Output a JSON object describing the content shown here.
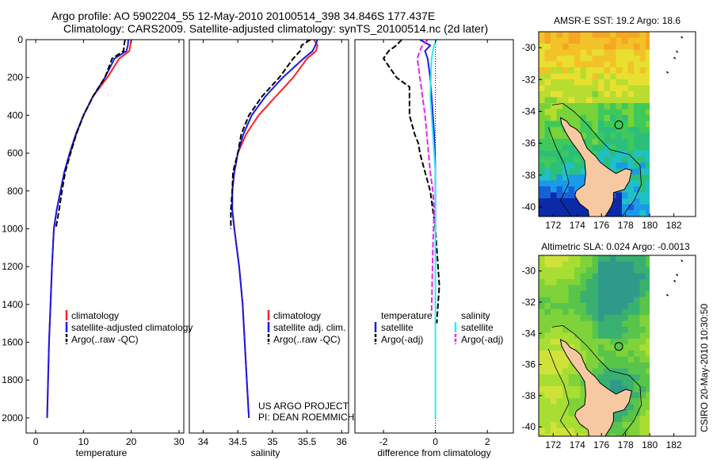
{
  "title_line1": "Argo profile: AO 5902204_55 12-May-2010 20100514_398 34.846S 177.437E",
  "title_line2": "Climatology: CARS2009. Satellite-adjusted climatology: synTS_20100514.nc (2d later)",
  "credit_line1": "US ARGO PROJECT",
  "credit_line2": "PI: DEAN ROEMMICH",
  "side_stamp": "CSIRO 20-May-2010 10:30:50",
  "colors": {
    "red": "#ff2020",
    "blue": "#1a1ae6",
    "black": "#000000",
    "cyan": "#33e6ff",
    "magenta": "#f020f0"
  },
  "chart_data": [
    {
      "type": "line",
      "xlabel": "temperature",
      "ylabel": "",
      "xlim": [
        -2,
        31
      ],
      "ylim": [
        2080,
        0
      ],
      "xticks": [
        "0",
        "10",
        "20",
        "30"
      ],
      "yticks": [
        "0",
        "200",
        "400",
        "600",
        "800",
        "1000",
        "1200",
        "1400",
        "1600",
        "1800",
        "2000"
      ],
      "legend": [
        "climatology",
        "satellite-adjusted climatology",
        "Argo(..raw -QC)"
      ],
      "series": [
        {
          "name": "climatology",
          "style": "red-solid",
          "x": [
            20,
            19.8,
            19.6,
            17.5,
            15,
            12,
            10,
            8.5,
            7.2,
            6,
            5.2,
            4.4,
            3.8,
            3.4,
            3.1,
            2.8,
            2.6,
            2.4
          ],
          "y": [
            0,
            30,
            60,
            100,
            200,
            300,
            400,
            500,
            600,
            700,
            800,
            900,
            1000,
            1200,
            1400,
            1600,
            1800,
            2000
          ]
        },
        {
          "name": "satellite-adjusted climatology",
          "style": "blue-solid",
          "x": [
            19.4,
            19.3,
            19,
            16.5,
            14.5,
            12,
            10,
            8.4,
            7.1,
            6,
            5.2,
            4.4,
            3.8,
            3.4,
            3.1,
            2.8,
            2.6,
            2.4
          ],
          "y": [
            0,
            30,
            60,
            100,
            200,
            300,
            400,
            500,
            600,
            700,
            800,
            900,
            1000,
            1200,
            1400,
            1600,
            1800,
            2000
          ]
        },
        {
          "name": "Argo(..raw -QC)",
          "style": "black-dash",
          "x": [
            18.7,
            18.5,
            18.4,
            16,
            14.5,
            12,
            10,
            8.5,
            7.3,
            6.2,
            5.5,
            4.9,
            4.2
          ],
          "y": [
            0,
            30,
            60,
            100,
            200,
            300,
            400,
            500,
            600,
            700,
            800,
            900,
            1000
          ]
        }
      ]
    },
    {
      "type": "line",
      "xlabel": "salinity",
      "ylabel": "",
      "xlim": [
        33.8,
        36.1
      ],
      "ylim": [
        2080,
        0
      ],
      "xticks": [
        "34",
        "34.5",
        "35",
        "35.5",
        "36"
      ],
      "legend": [
        "climatology",
        "satellite adj. clim.",
        "Argo(..raw -QC)"
      ],
      "series": [
        {
          "name": "climatology",
          "style": "red-solid",
          "x": [
            35.6,
            35.65,
            35.63,
            35.5,
            35.3,
            35.05,
            34.8,
            34.62,
            34.5,
            34.45,
            34.42,
            34.42,
            34.45,
            34.52,
            34.57,
            34.6,
            34.63,
            34.66
          ],
          "y": [
            0,
            30,
            60,
            100,
            200,
            300,
            400,
            500,
            600,
            700,
            800,
            900,
            1000,
            1200,
            1400,
            1600,
            1800,
            2000
          ]
        },
        {
          "name": "satellite adj. clim.",
          "style": "blue-solid",
          "x": [
            35.65,
            35.62,
            35.58,
            35.45,
            35.15,
            34.9,
            34.7,
            34.58,
            34.5,
            34.45,
            34.42,
            34.42,
            34.45,
            34.52,
            34.57,
            34.6,
            34.63,
            34.66
          ],
          "y": [
            0,
            30,
            60,
            100,
            200,
            300,
            400,
            500,
            600,
            700,
            800,
            900,
            1000,
            1200,
            1400,
            1600,
            1800,
            2000
          ]
        },
        {
          "name": "Argo(..raw -QC)",
          "style": "black-dash",
          "x": [
            35.55,
            35.42,
            35.4,
            35.3,
            35.1,
            34.85,
            34.66,
            34.55,
            34.5,
            34.43,
            34.42,
            34.4,
            34.4
          ],
          "y": [
            0,
            30,
            60,
            100,
            200,
            300,
            400,
            500,
            600,
            700,
            800,
            900,
            1000
          ]
        }
      ]
    },
    {
      "type": "line",
      "xlabel": "difference from climatology",
      "ylabel": "",
      "xlim": [
        -3.1,
        3.0
      ],
      "ylim": [
        2080,
        0
      ],
      "xticks": [
        "-2",
        "0",
        "2"
      ],
      "legend_temperature_title": "temperature",
      "legend_salinity_title": "salinity",
      "legend": [
        "satellite",
        "Argo(-adj)",
        "satellite",
        "Argo(-adj)"
      ],
      "series": [
        {
          "name": "temperature satellite",
          "style": "blue-solid",
          "x": [
            -0.6,
            -0.2,
            -0.4,
            -0.3,
            -0.2,
            -0.15,
            -0.1,
            -0.05,
            -0.02,
            0,
            0,
            0,
            0
          ],
          "y": [
            0,
            30,
            60,
            100,
            200,
            300,
            400,
            500,
            600,
            700,
            800,
            900,
            1000
          ]
        },
        {
          "name": "temperature Argo(-adj)",
          "style": "black-dash",
          "x": [
            -1.3,
            -1.5,
            -1.8,
            -2.0,
            -1.5,
            -1.0,
            -1.0,
            -0.8,
            -0.65,
            -0.6,
            -0.4,
            -0.2,
            -0.1,
            0,
            0.1,
            0.15,
            0.1,
            0.05
          ],
          "y": [
            0,
            30,
            60,
            100,
            200,
            250,
            400,
            500,
            550,
            600,
            700,
            800,
            900,
            1000,
            1200,
            1300,
            1400,
            1500
          ]
        },
        {
          "name": "salinity satellite",
          "style": "cyan-solid",
          "x": [
            0.05,
            -0.05,
            -0.1,
            -0.15,
            -0.2,
            -0.15,
            -0.1,
            -0.05,
            0,
            0,
            0
          ],
          "y": [
            0,
            30,
            60,
            100,
            300,
            400,
            500,
            600,
            700,
            800,
            2000
          ]
        },
        {
          "name": "salinity Argo(-adj)",
          "style": "magenta-dash",
          "x": [
            -0.3,
            -0.5,
            -0.6,
            -0.7,
            -0.6,
            -0.4,
            -0.3,
            -0.2,
            -0.1,
            -0.05,
            -0.1,
            -0.15
          ],
          "y": [
            0,
            30,
            60,
            100,
            200,
            400,
            550,
            700,
            800,
            900,
            1100,
            1450
          ]
        }
      ]
    },
    {
      "type": "heatmap",
      "title": "AMSR-E SST: 19.2 Argo: 18.6",
      "xticks": [
        "172",
        "174",
        "176",
        "178",
        "180",
        "182"
      ],
      "yticks": [
        "-30",
        "-32",
        "-34",
        "-36",
        "-38",
        "-40"
      ],
      "marker": {
        "lon": 177.437,
        "lat": -34.846
      }
    },
    {
      "type": "heatmap",
      "title": "Altimetric SLA: 0.024 Argo: -0.0013",
      "xticks": [
        "172",
        "174",
        "176",
        "178",
        "180",
        "182"
      ],
      "yticks": [
        "-30",
        "-32",
        "-34",
        "-36",
        "-38",
        "-40"
      ],
      "marker": {
        "lon": 177.437,
        "lat": -34.846
      }
    }
  ]
}
